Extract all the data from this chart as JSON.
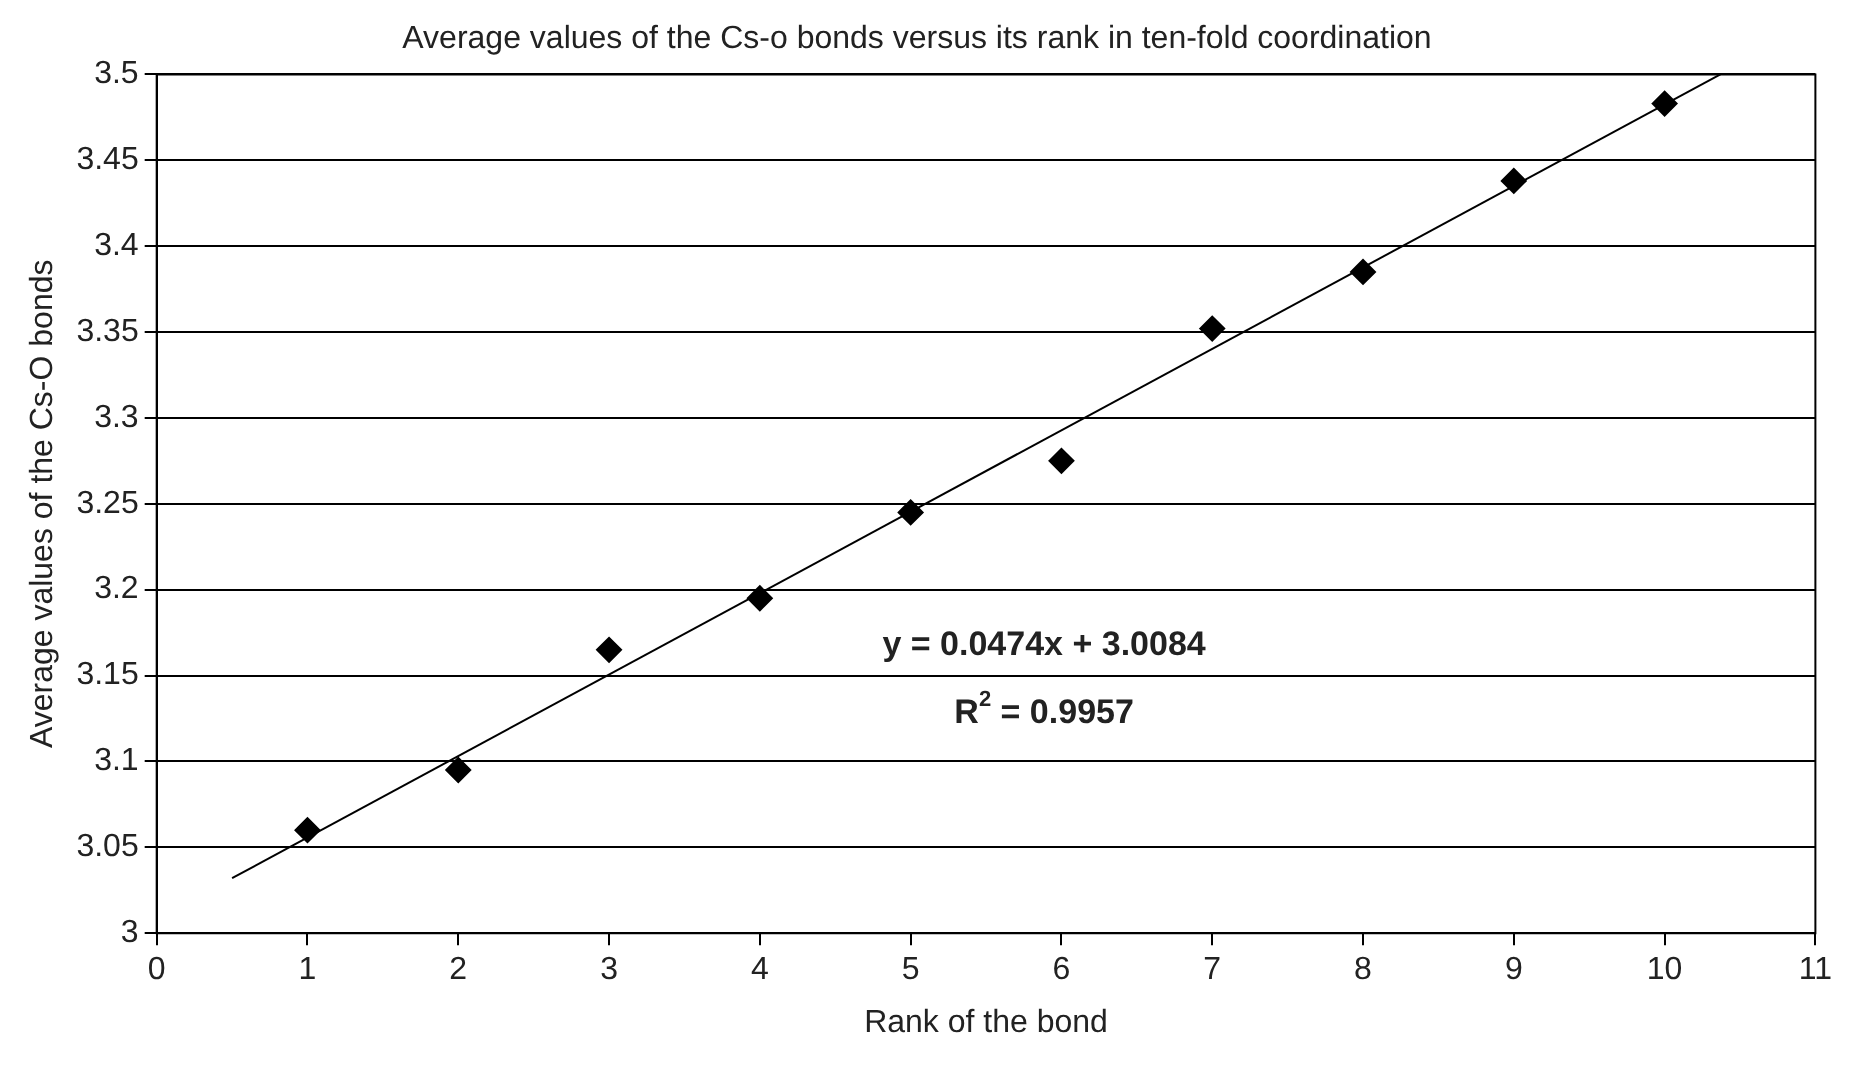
{
  "chart_data": {
    "type": "scatter",
    "title": "Average values of the Cs-o bonds versus its rank in ten-fold coordination",
    "xlabel": "Rank of the bond",
    "ylabel": "Average values of the Cs-O bonds",
    "series": [
      {
        "color": "#000000",
        "marker": "diamond",
        "x": [
          1,
          2,
          3,
          4,
          5,
          6,
          7,
          8,
          9,
          10
        ],
        "values": [
          3.06,
          3.095,
          3.165,
          3.195,
          3.245,
          3.275,
          3.352,
          3.385,
          3.438,
          3.483
        ]
      },
      {
        "type": "line",
        "color": "#000000",
        "marker": "none",
        "x": [
          0.5,
          10.37
        ],
        "values": [
          3.032,
          3.5
        ]
      }
    ],
    "xlim": [
      0,
      11
    ],
    "xticks": [
      0,
      1,
      2,
      3,
      4,
      5,
      6,
      7,
      8,
      9,
      10,
      11
    ],
    "ylim": [
      3,
      3.5
    ],
    "yticks": [
      3,
      3.05,
      3.1,
      3.15,
      3.2,
      3.25,
      3.3,
      3.35,
      3.4,
      3.45,
      3.5
    ],
    "grid": "y",
    "legend": false,
    "annotations": [
      "y = 0.0474x + 3.0084",
      "R$^{2}$ = 0.9957"
    ]
  }
}
